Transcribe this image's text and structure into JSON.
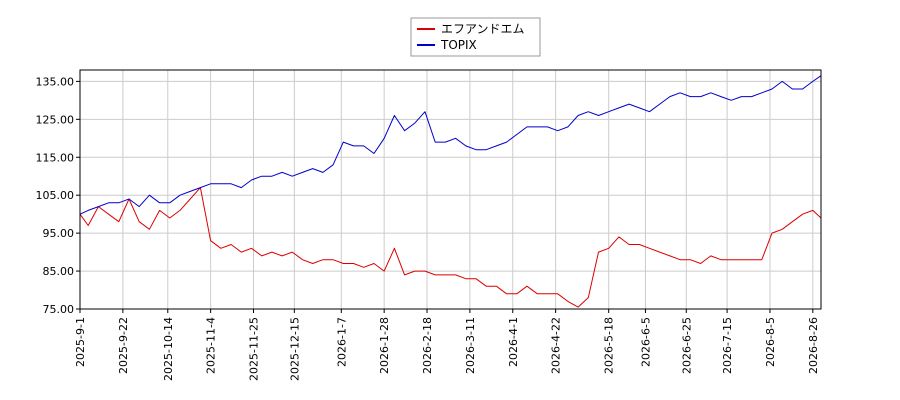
{
  "chart_data": {
    "type": "line",
    "title": "",
    "xlabel": "",
    "ylabel": "",
    "ylim": [
      75,
      138
    ],
    "xlim": [
      "2025-09-01",
      "2026-08-30"
    ],
    "grid": true,
    "legend_position": "top-center",
    "y_ticks": [
      75,
      85,
      95,
      105,
      115,
      125,
      135
    ],
    "y_tick_labels": [
      "75.00",
      "85.00",
      "95.00",
      "105.00",
      "115.00",
      "125.00",
      "135.00"
    ],
    "x_ticks": [
      "2025-09-01",
      "2025-09-22",
      "2025-10-14",
      "2025-11-04",
      "2025-11-25",
      "2025-12-15",
      "2026-01-07",
      "2026-01-28",
      "2026-02-18",
      "2026-03-11",
      "2026-04-01",
      "2026-04-22",
      "2026-05-18",
      "2026-06-05",
      "2026-06-25",
      "2026-07-15",
      "2026-08-05",
      "2026-08-26"
    ],
    "x_tick_labels": [
      "2025-9-1",
      "2025-9-22",
      "2025-10-14",
      "2025-11-4",
      "2025-11-25",
      "2025-12-15",
      "2026-1-7",
      "2026-1-28",
      "2026-2-18",
      "2026-3-11",
      "2026-4-1",
      "2026-4-22",
      "2026-5-18",
      "2026-6-5",
      "2026-6-25",
      "2026-7-15",
      "2026-8-5",
      "2026-8-26"
    ],
    "x": [
      "2025-09-01",
      "2025-09-05",
      "2025-09-10",
      "2025-09-15",
      "2025-09-20",
      "2025-09-25",
      "2025-09-30",
      "2025-10-05",
      "2025-10-10",
      "2025-10-15",
      "2025-10-20",
      "2025-10-25",
      "2025-10-30",
      "2025-11-04",
      "2025-11-09",
      "2025-11-14",
      "2025-11-19",
      "2025-11-24",
      "2025-11-29",
      "2025-12-04",
      "2025-12-09",
      "2025-12-14",
      "2025-12-19",
      "2025-12-24",
      "2025-12-29",
      "2026-01-03",
      "2026-01-08",
      "2026-01-13",
      "2026-01-18",
      "2026-01-23",
      "2026-01-28",
      "2026-02-02",
      "2026-02-07",
      "2026-02-12",
      "2026-02-17",
      "2026-02-22",
      "2026-02-27",
      "2026-03-04",
      "2026-03-09",
      "2026-03-14",
      "2026-03-19",
      "2026-03-24",
      "2026-03-29",
      "2026-04-03",
      "2026-04-08",
      "2026-04-13",
      "2026-04-18",
      "2026-04-23",
      "2026-04-28",
      "2026-05-03",
      "2026-05-08",
      "2026-05-13",
      "2026-05-18",
      "2026-05-23",
      "2026-05-28",
      "2026-06-02",
      "2026-06-07",
      "2026-06-12",
      "2026-06-17",
      "2026-06-22",
      "2026-06-27",
      "2026-07-02",
      "2026-07-07",
      "2026-07-12",
      "2026-07-17",
      "2026-07-22",
      "2026-07-27",
      "2026-08-01",
      "2026-08-06",
      "2026-08-11",
      "2026-08-16",
      "2026-08-21",
      "2026-08-26",
      "2026-08-30"
    ],
    "series": [
      {
        "name": "エフアンドエム",
        "color": "#dd0000",
        "values": [
          100,
          97,
          102,
          100,
          98,
          104,
          98,
          96,
          101,
          99,
          101,
          104,
          107,
          93,
          91,
          92,
          90,
          91,
          89,
          90,
          89,
          90,
          88,
          87,
          88,
          88,
          87,
          87,
          86,
          87,
          85,
          91,
          84,
          85,
          85,
          84,
          84,
          84,
          83,
          83,
          81,
          81,
          79,
          79,
          81,
          79,
          79,
          79,
          77,
          75.5,
          78,
          90,
          91,
          94,
          92,
          92,
          91,
          90,
          89,
          88,
          88,
          87,
          89,
          88,
          88,
          88,
          88,
          88,
          95,
          96,
          98,
          100,
          101,
          99
        ]
      },
      {
        "name": "TOPIX",
        "color": "#0000cc",
        "values": [
          100,
          101,
          102,
          103,
          103,
          104,
          102,
          105,
          103,
          103,
          105,
          106,
          107,
          108,
          108,
          108,
          107,
          109,
          110,
          110,
          111,
          110,
          111,
          112,
          111,
          113,
          119,
          118,
          118,
          116,
          120,
          126,
          122,
          124,
          127,
          119,
          119,
          120,
          118,
          117,
          117,
          118,
          119,
          121,
          123,
          123,
          123,
          122,
          123,
          126,
          127,
          126,
          127,
          128,
          129,
          128,
          127,
          129,
          131,
          132,
          131,
          131,
          132,
          131,
          130,
          131,
          131,
          132,
          133,
          135,
          133,
          133,
          135,
          136.5
        ]
      }
    ]
  }
}
